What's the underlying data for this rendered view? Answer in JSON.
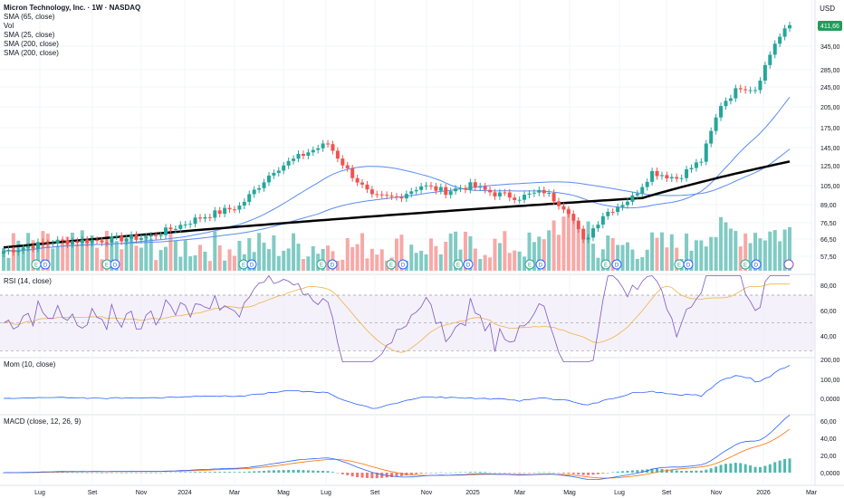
{
  "chart_data": {
    "type": "candlestick",
    "symbol_title": "Micron Technology, Inc. · 1W · NASDAQ",
    "currency": "USD",
    "last_price": "411,66",
    "price_axis_ticks": [
      "345,00",
      "285,00",
      "245,00",
      "205,00",
      "175,00",
      "145,00",
      "125,00",
      "105,00",
      "89,00",
      "76,50",
      "66,50",
      "57,50"
    ],
    "time_axis_ticks": [
      "Lug",
      "Set",
      "Nov",
      "2024",
      "Mar",
      "Mag",
      "Lug",
      "Set",
      "Nov",
      "2025",
      "Mar",
      "Mag",
      "Lug",
      "Set",
      "Nov",
      "2026",
      "Mar"
    ],
    "indicators_main": [
      "SMA (65, close)",
      "Vol",
      "SMA (25, close)",
      "SMA (200, close)",
      "SMA (200, close)"
    ],
    "event_markers": [
      "E",
      "D",
      "E",
      "D",
      "E",
      "D",
      "E",
      "D",
      "E",
      "D",
      "E",
      "D",
      "E",
      "D",
      "E",
      "D",
      "E",
      "D",
      "E",
      "D"
    ],
    "colors": {
      "up": "#26a69a",
      "down": "#ef5350",
      "vol_up": "#80cbc4",
      "vol_down": "#f7a9a7",
      "sma_thin": "#5b8def",
      "sma_thick": "#000000",
      "rsi": "#7e57c2",
      "rsi_ma": "#f0b24a",
      "macd": "#2962ff",
      "signal": "#ff6d00",
      "accent": "#1e9e5a"
    },
    "rsi": {
      "title": "RSI (14, close)",
      "ticks": [
        "80,00",
        "60,00",
        "40,00"
      ],
      "upper": 70,
      "lower": 30
    },
    "momentum": {
      "title": "Mom (10, close)",
      "ticks": [
        "200,00",
        "100,00",
        "0,0000"
      ]
    },
    "macd": {
      "title": "MACD (close, 12, 26, 9)",
      "ticks": [
        "60,00",
        "40,00",
        "20,00",
        "0,0000"
      ]
    }
  }
}
